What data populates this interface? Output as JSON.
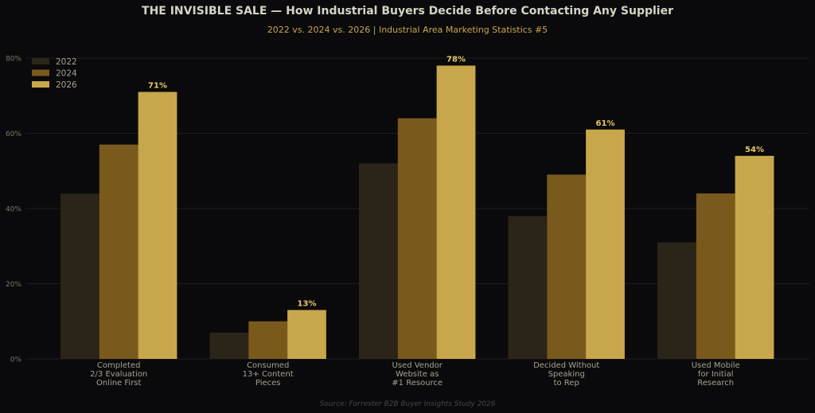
{
  "chart_data": {
    "type": "bar",
    "title": "THE INVISIBLE SALE  —  How Industrial Buyers Decide Before Contacting Any Supplier",
    "subtitle": "2022 vs. 2024 vs. 2026  |  Industrial Area Marketing Statistics #5",
    "source": "Source: Forrester B2B Buyer Insights Study 2026",
    "categories": [
      [
        "Completed",
        "2/3 Evaluation",
        "Online First"
      ],
      [
        "Consumed",
        "13+ Content",
        "Pieces"
      ],
      [
        "Used Vendor",
        "Website as",
        "#1 Resource"
      ],
      [
        "Decided Without",
        "Speaking",
        "to Rep"
      ],
      [
        "Used Mobile",
        "for Initial",
        "Research"
      ]
    ],
    "series": [
      {
        "name": "2022",
        "values": [
          44,
          7,
          52,
          38,
          31
        ],
        "color": "#2b2418"
      },
      {
        "name": "2024",
        "values": [
          57,
          10,
          64,
          49,
          44
        ],
        "color": "#7a5a1c"
      },
      {
        "name": "2026",
        "values": [
          71,
          13,
          78,
          61,
          54
        ],
        "color": "#c8a64b"
      }
    ],
    "data_labels": [
      "71%",
      "13%",
      "78%",
      "61%",
      "54%"
    ],
    "yticks": [
      "0%",
      "20%",
      "40%",
      "60%",
      "80%"
    ],
    "ytick_values": [
      0,
      20,
      40,
      60,
      80
    ],
    "ylim": [
      0,
      80
    ],
    "grid": true,
    "legend_position": "top-left",
    "colors": {
      "background": "#0a0a0c",
      "title": "#d9d3c4",
      "subtitle": "#c8a64b",
      "data_label": "#e8c96a",
      "tick": "#7d7666",
      "category_label": "#a8a090",
      "grid": "#1e1e20",
      "source": "#4a463e"
    }
  }
}
